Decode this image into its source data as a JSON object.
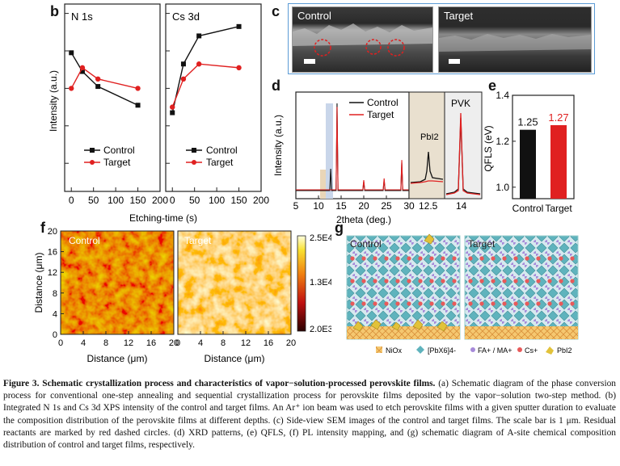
{
  "panels": {
    "b": {
      "letter": "b",
      "left_title": "N 1s",
      "right_title": "Cs 3d",
      "ylabel": "Intensity (a.u.)",
      "xlabel": "Etching-time (s)",
      "legend": [
        "Control",
        "Target"
      ]
    },
    "c": {
      "letter": "c",
      "left_label": "Control",
      "right_label": "Target"
    },
    "d": {
      "letter": "d",
      "ylabel": "Intensity (a.u.)",
      "xlabel": "2theta (deg.)",
      "legend": [
        "Control",
        "Target"
      ],
      "inset1_label": "PbI2",
      "inset2_label": "PVK"
    },
    "e": {
      "letter": "e",
      "ylabel": "QFLS (eV)"
    },
    "f": {
      "letter": "f",
      "left_label": "Control",
      "right_label": "Target",
      "xlabel": "Distance (μm)",
      "ylabel": "Distance (μm)",
      "colorbar_ticks": [
        "2.5E4",
        "1.3E4",
        "2.0E3"
      ]
    },
    "g": {
      "letter": "g",
      "left_label": "Control",
      "right_label": "Target",
      "legend": [
        "NiOx",
        "[PbX6]4-",
        "FA+ / MA+",
        "Cs+",
        "PbI2"
      ]
    }
  },
  "chart_data": [
    {
      "type": "line",
      "title": "N 1s",
      "xlabel": "Etching-time (s)",
      "ylabel": "Intensity (a.u.)",
      "xlim": [
        -15,
        200
      ],
      "x_ticks": [
        0,
        50,
        100,
        150,
        200
      ],
      "series": [
        {
          "name": "Control",
          "color": "#111111",
          "x": [
            0,
            25,
            60,
            150
          ],
          "y": [
            0.74,
            0.64,
            0.56,
            0.46
          ]
        },
        {
          "name": "Target",
          "color": "#e02020",
          "x": [
            0,
            25,
            60,
            150
          ],
          "y": [
            0.55,
            0.66,
            0.6,
            0.55
          ]
        }
      ]
    },
    {
      "type": "line",
      "title": "Cs 3d",
      "xlabel": "Etching-time (s)",
      "ylabel": "Intensity (a.u.)",
      "xlim": [
        -15,
        200
      ],
      "x_ticks": [
        0,
        50,
        100,
        150,
        200
      ],
      "series": [
        {
          "name": "Control",
          "color": "#111111",
          "x": [
            0,
            25,
            60,
            150
          ],
          "y": [
            0.42,
            0.68,
            0.83,
            0.88
          ]
        },
        {
          "name": "Target",
          "color": "#e02020",
          "x": [
            0,
            25,
            60,
            150
          ],
          "y": [
            0.45,
            0.6,
            0.68,
            0.66
          ]
        }
      ]
    },
    {
      "type": "line",
      "title": "",
      "xlabel": "2theta (deg.)",
      "ylabel": "Intensity (a.u.)",
      "xlim": [
        5,
        30
      ],
      "x_ticks": [
        5,
        10,
        15,
        20,
        25,
        30
      ],
      "series": [
        {
          "name": "Control",
          "color": "#111111",
          "peaks": [
            [
              12.7,
              0.25
            ],
            [
              14.1,
              1.0
            ],
            [
              20.0,
              0.1
            ],
            [
              24.5,
              0.12
            ],
            [
              28.4,
              0.32
            ],
            [
              31.8,
              0.2
            ]
          ]
        },
        {
          "name": "Target",
          "color": "#e02020",
          "peaks": [
            [
              14.1,
              0.96
            ],
            [
              20.0,
              0.12
            ],
            [
              24.5,
              0.14
            ],
            [
              28.4,
              0.35
            ],
            [
              31.8,
              0.22
            ]
          ]
        }
      ],
      "inset_x_ticks": [
        "12.5",
        "14"
      ]
    },
    {
      "type": "bar",
      "title": "",
      "ylabel": "QFLS (eV)",
      "categories": [
        "Control",
        "Target"
      ],
      "values": [
        1.25,
        1.27
      ],
      "colors": [
        "#111111",
        "#e02020"
      ],
      "value_labels": [
        "1.25",
        "1.27"
      ],
      "ylim": [
        0.95,
        1.4
      ],
      "y_ticks": [
        "1.0",
        "1.2",
        "1.4"
      ]
    },
    {
      "type": "heatmap",
      "title": "",
      "xlabel": "Distance (μm)",
      "ylabel": "Distance (μm)",
      "x_ticks": [
        0,
        4,
        8,
        12,
        16,
        20
      ],
      "y_ticks": [
        0,
        4,
        8,
        12,
        16,
        20
      ],
      "colorbar_ticks": [
        "2.5E4",
        "1.3E4",
        "2.0E3"
      ],
      "panels": [
        "Control",
        "Target"
      ]
    }
  ],
  "caption": {
    "lead": "Figure 3. Schematic crystallization process and characteristics of vapor−solution-processed perovskite films.",
    "body": " (a) Schematic diagram of the phase conversion process for conventional one-step annealing and sequential crystallization process for perovskite films deposited by the vapor−solution two-step method. (b) Integrated N 1s and Cs 3d XPS intensity of the control and target films. An Ar⁺ ion beam was used to etch perovskite films with a given sputter duration to evaluate the composition distribution of the perovskite films at different depths. (c) Side-view SEM images of the control and target films. The scale bar is 1 μm. Residual reactants are marked by red dashed circles. (d) XRD patterns, (e) QFLS, (f) PL intensity mapping, and (g) schematic diagram of A-site chemical composition distribution of control and target films, respectively."
  },
  "colors": {
    "control": "#111111",
    "target": "#e02020",
    "sem_frame": "#5b9bd5"
  }
}
